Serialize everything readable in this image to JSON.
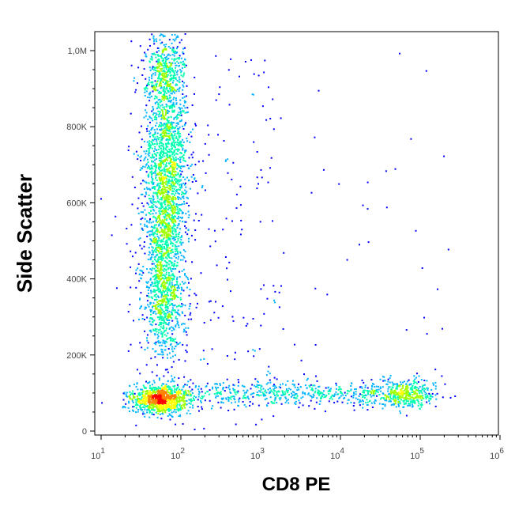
{
  "chart_data": {
    "type": "scatter",
    "title": "",
    "xlabel": "CD8 PE",
    "ylabel": "Side Scatter",
    "x_scale": "log",
    "xlim": [
      10,
      1000000
    ],
    "ylim": [
      0,
      1050000
    ],
    "grid": false,
    "legend": "none",
    "x_ticks": [
      {
        "value": 10,
        "base": "10",
        "exp": "1"
      },
      {
        "value": 100,
        "base": "10",
        "exp": "2"
      },
      {
        "value": 1000,
        "base": "10",
        "exp": "3"
      },
      {
        "value": 10000,
        "base": "10",
        "exp": "4"
      },
      {
        "value": 100000,
        "base": "10",
        "exp": "5"
      },
      {
        "value": 1000000,
        "base": "10",
        "exp": "6"
      }
    ],
    "y_ticks": [
      {
        "value": 0,
        "label": "0"
      },
      {
        "value": 200000,
        "label": "200K"
      },
      {
        "value": 400000,
        "label": "400K"
      },
      {
        "value": 600000,
        "label": "600K"
      },
      {
        "value": 800000,
        "label": "800K"
      },
      {
        "value": 1000000,
        "label": "1,0M"
      }
    ],
    "populations": [
      {
        "x": 40,
        "y": 85000,
        "density": "high"
      },
      {
        "x": 60,
        "y": 700000,
        "density": "high"
      },
      {
        "x": 60,
        "y": 350000,
        "density": "medium"
      },
      {
        "x": 1000,
        "y": 100000,
        "density": "low"
      },
      {
        "x": 70000,
        "y": 100000,
        "density": "medium"
      }
    ],
    "colormap": [
      "#0000ff",
      "#00b4ff",
      "#00ffb0",
      "#a0ff00",
      "#ffff00",
      "#ff8000",
      "#ff0000"
    ]
  }
}
